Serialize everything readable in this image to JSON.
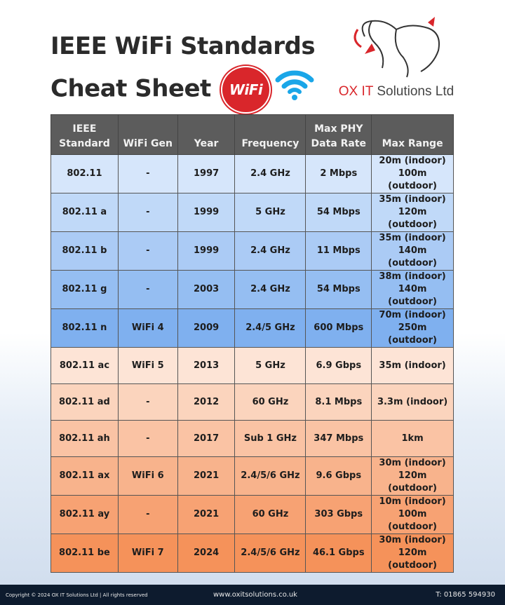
{
  "title_line1": "IEEE WiFi Standards",
  "title_line2": "Cheat Sheet",
  "wifi_badge": "WiFi",
  "logo_text_brand": "OX IT",
  "logo_text_rest": " Solutions Ltd",
  "colors": {
    "header": "#5c5c5c",
    "blue_light": "#d6e6fb",
    "blue_dark": "#7fb0ef",
    "orange_light": "#fde4d6",
    "orange_dark": "#f5925a",
    "footer": "#0d1b2e",
    "brand_red": "#d9262b"
  },
  "table": {
    "headers": [
      "IEEE Standard",
      "WiFi Gen",
      "Year",
      "Frequency",
      "Max PHY Data Rate",
      "Max Range"
    ],
    "rows": [
      [
        "802.11",
        "-",
        "1997",
        "2.4 GHz",
        "2 Mbps",
        "20m (indoor)\n100m (outdoor)"
      ],
      [
        "802.11 a",
        "-",
        "1999",
        "5 GHz",
        "54 Mbps",
        "35m (indoor)\n120m (outdoor)"
      ],
      [
        "802.11 b",
        "-",
        "1999",
        "2.4 GHz",
        "11 Mbps",
        "35m (indoor)\n140m (outdoor)"
      ],
      [
        "802.11 g",
        "-",
        "2003",
        "2.4 GHz",
        "54 Mbps",
        "38m (indoor)\n140m (outdoor)"
      ],
      [
        "802.11 n",
        "WiFi 4",
        "2009",
        "2.4/5 GHz",
        "600 Mbps",
        "70m (indoor)\n250m (outdoor)"
      ],
      [
        "802.11 ac",
        "WiFi 5",
        "2013",
        "5 GHz",
        "6.9 Gbps",
        "35m (indoor)"
      ],
      [
        "802.11 ad",
        "-",
        "2012",
        "60 GHz",
        "8.1 Mbps",
        "3.3m (indoor)"
      ],
      [
        "802.11 ah",
        "-",
        "2017",
        "Sub 1 GHz",
        "347 Mbps",
        "1km"
      ],
      [
        "802.11 ax",
        "WiFi 6",
        "2021",
        "2.4/5/6 GHz",
        "9.6 Gbps",
        "30m (indoor)\n120m (outdoor)"
      ],
      [
        "802.11 ay",
        "-",
        "2021",
        "60 GHz",
        "303 Gbps",
        "10m (indoor)\n100m (outdoor)"
      ],
      [
        "802.11 be",
        "WiFi 7",
        "2024",
        "2.4/5/6 GHz",
        "46.1 Gbps",
        "30m (indoor)\n120m (outdoor)"
      ]
    ]
  },
  "footer": {
    "copyright": "Copyright © 2024 OX IT Solutions Ltd | All rights reserved",
    "website": "www.oxitsolutions.co.uk",
    "phone": "T: 01865 594930"
  }
}
